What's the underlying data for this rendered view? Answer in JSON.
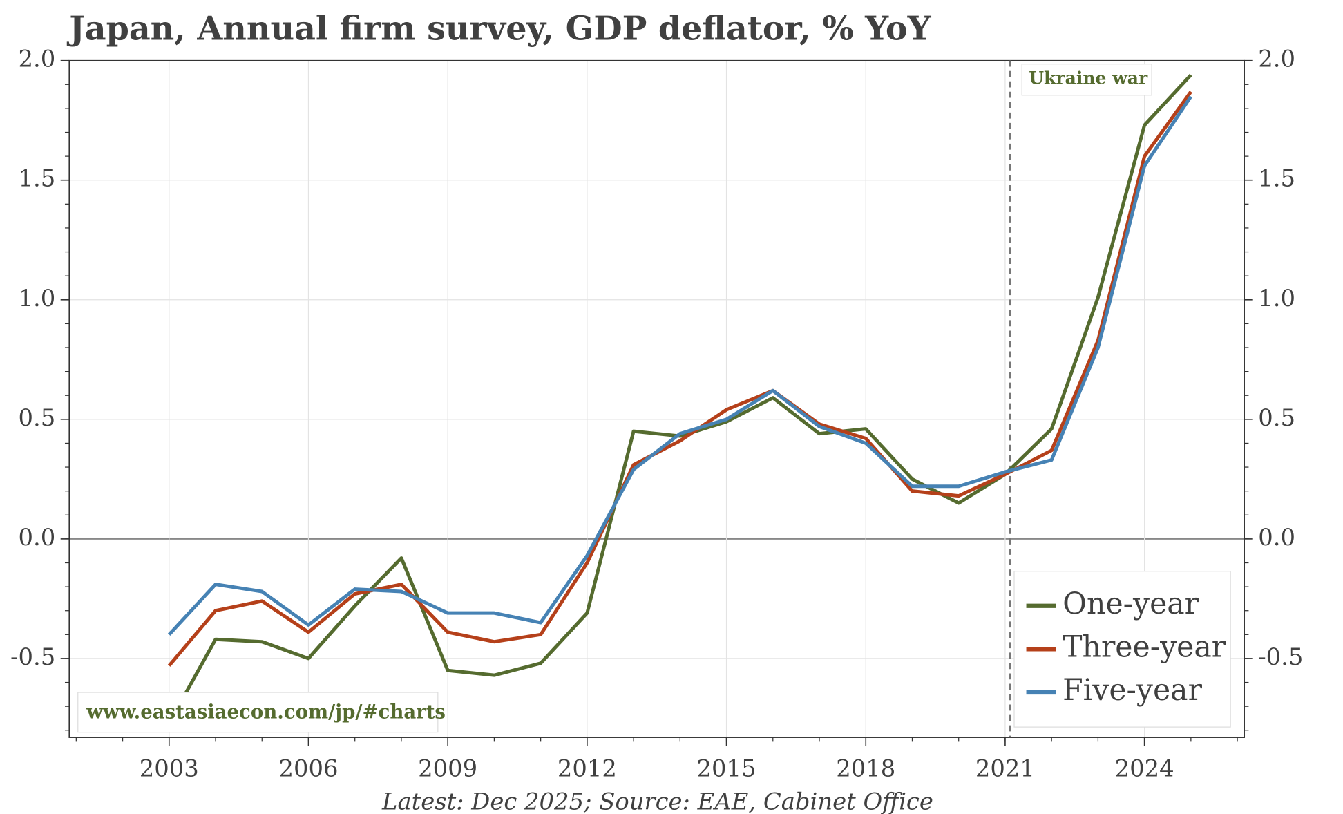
{
  "chart_data": {
    "type": "line",
    "title": "Japan, Annual firm survey, GDP deflator, % YoY",
    "source": "Latest: Dec 2025; Source: EAE, Cabinet Office",
    "watermark": "www.eastasiaecon.com/jp/#charts",
    "event": {
      "x": 2021.1,
      "label": "Ukraine war"
    },
    "x": [
      2003,
      2004,
      2005,
      2006,
      2007,
      2008,
      2009,
      2010,
      2011,
      2012,
      2013,
      2014,
      2015,
      2016,
      2017,
      2018,
      2019,
      2020,
      2021,
      2022,
      2023,
      2024,
      2025
    ],
    "series": [
      {
        "name": "One-year",
        "color": "#556b2f",
        "values": [
          -0.77,
          -0.42,
          -0.43,
          -0.5,
          -0.28,
          -0.08,
          -0.55,
          -0.57,
          -0.52,
          -0.31,
          0.45,
          0.43,
          0.49,
          0.59,
          0.44,
          0.46,
          0.25,
          0.15,
          0.27,
          0.46,
          1.01,
          1.73,
          1.94
        ]
      },
      {
        "name": "Three-year",
        "color": "#b5401a",
        "values": [
          -0.53,
          -0.3,
          -0.26,
          -0.39,
          -0.23,
          -0.19,
          -0.39,
          -0.43,
          -0.4,
          -0.1,
          0.31,
          0.41,
          0.54,
          0.62,
          0.48,
          0.42,
          0.2,
          0.18,
          0.27,
          0.37,
          0.83,
          1.6,
          1.87
        ]
      },
      {
        "name": "Five-year",
        "color": "#4682b4",
        "values": [
          -0.4,
          -0.19,
          -0.22,
          -0.36,
          -0.21,
          -0.22,
          -0.31,
          -0.31,
          -0.35,
          -0.07,
          0.29,
          0.44,
          0.5,
          0.62,
          0.47,
          0.4,
          0.22,
          0.22,
          0.28,
          0.33,
          0.8,
          1.56,
          1.85
        ]
      }
    ],
    "xlim": [
      2000.85,
      2026.15
    ],
    "xticks": [
      2003,
      2006,
      2009,
      2012,
      2015,
      2018,
      2021,
      2024
    ],
    "ylim": [
      -0.83,
      2.0
    ],
    "yticks": [
      -0.5,
      {
        "value": 0,
        "label": "0.0"
      },
      0.5,
      {
        "value": 1,
        "label": "1.0"
      },
      1.5,
      {
        "value": 2,
        "label": "2.0"
      }
    ],
    "grid": true,
    "legend": "lower right"
  }
}
